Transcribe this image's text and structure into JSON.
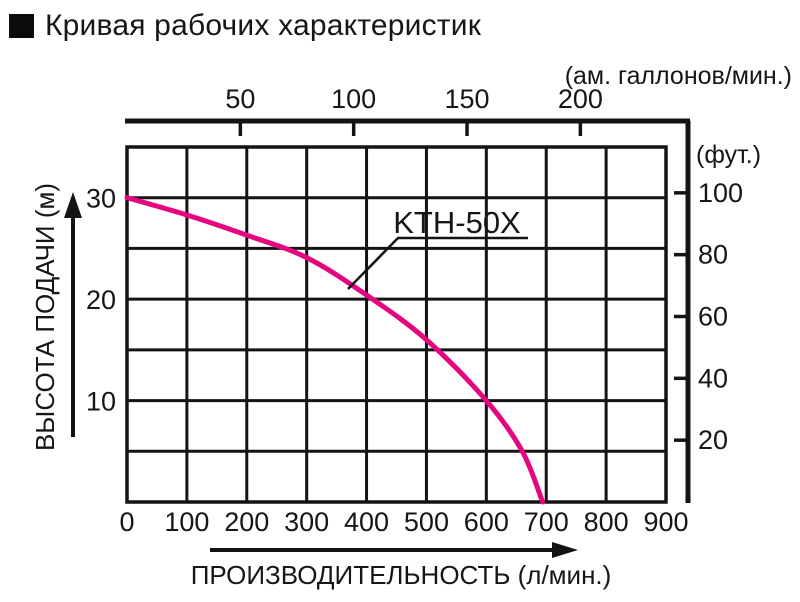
{
  "header": {
    "title": "Кривая рабочих характеристик"
  },
  "chart_data": {
    "type": "line",
    "title": "Кривая рабочих характеристик",
    "grid": true,
    "legend_position": "callout-on-curve",
    "bottom_axis": {
      "title": "ПРОИЗВОДИТЕЛЬНОСТЬ (л/мин.)",
      "ticks": [
        0,
        100,
        200,
        300,
        400,
        500,
        600,
        700,
        800,
        900
      ],
      "range": [
        0,
        900
      ]
    },
    "left_axis": {
      "title": "ВЫСОТА ПОДАЧИ (м)",
      "ticks": [
        30,
        20,
        10
      ],
      "range": [
        0,
        35
      ],
      "grid_step": 5
    },
    "top_axis": {
      "unit_label": "(ам. галлонов/мин.)",
      "ticks": [
        50,
        100,
        150,
        200
      ],
      "liters_per_gallon": 3.785
    },
    "right_axis": {
      "unit_label": "(фут.)",
      "ticks": [
        100,
        80,
        60,
        40,
        20
      ],
      "meters_per_foot": 0.3048
    },
    "series": [
      {
        "name": "KTH-50X",
        "color": "#e4057f",
        "points": [
          [
            0,
            30
          ],
          [
            100,
            28.3
          ],
          [
            200,
            26.3
          ],
          [
            300,
            24.1
          ],
          [
            400,
            20.4
          ],
          [
            500,
            16
          ],
          [
            600,
            10
          ],
          [
            660,
            5
          ],
          [
            694,
            0
          ]
        ]
      }
    ]
  }
}
